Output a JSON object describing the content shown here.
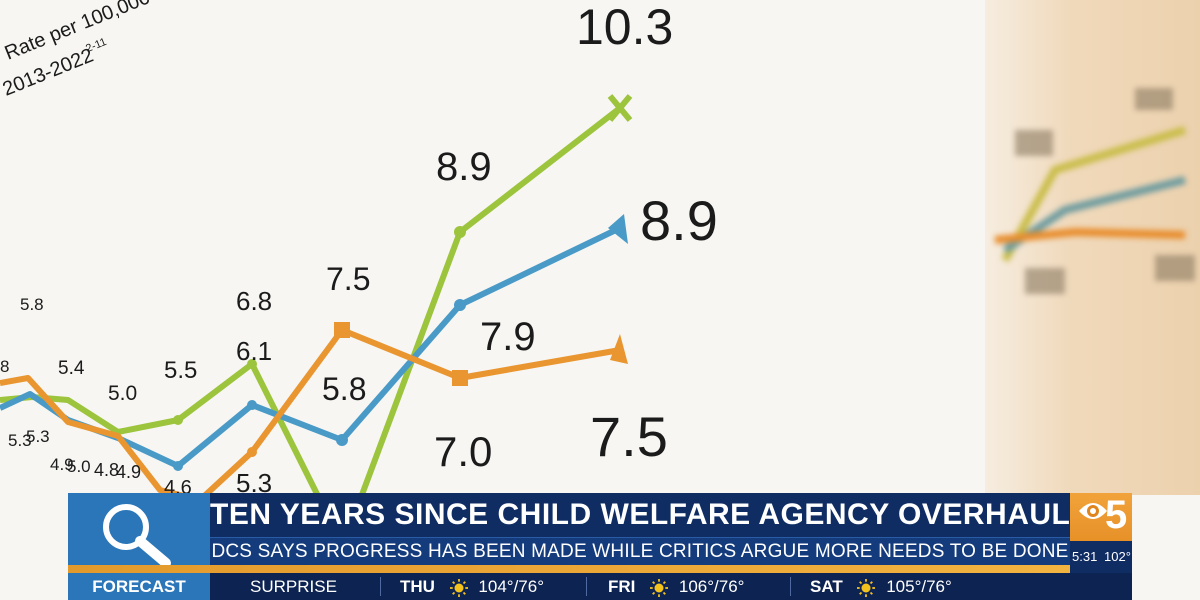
{
  "chart_data": {
    "type": "line",
    "ylabel": "Rate per 100,000",
    "subtitle_note": "2013-2022",
    "subtitle_superscript": "2-11",
    "series": [
      {
        "color": "#9cc43c",
        "values": [
          null,
          null,
          5.4,
          null,
          5.5,
          6.8,
          null,
          null,
          8.9,
          10.3
        ]
      },
      {
        "color": "#4a9ac7",
        "values": [
          null,
          5.3,
          4.9,
          4.8,
          null,
          6.1,
          5.8,
          null,
          7.9,
          8.9
        ]
      },
      {
        "color": "#e99530",
        "values": [
          null,
          5.8,
          5.0,
          4.9,
          null,
          5.3,
          7.5,
          null,
          7.0,
          7.5
        ]
      }
    ],
    "labels": {
      "top_left_8": "8",
      "l_5_8": "5.8",
      "l_5_3a": "5.3",
      "l_5_3b": "5.3",
      "l_5_4": "5.4",
      "l_4_9": "4.9",
      "l_5_0a": "5.0",
      "l_5_0b": "5.0",
      "l_4_8": "4.8",
      "l_4_9b": "4.9",
      "l_4_6": "4.6",
      "l_5_5": "5.5",
      "l_6_8": "6.8",
      "l_6_1": "6.1",
      "l_5_3c": "5.3",
      "l_7_5a": "7.5",
      "l_5_8b": "5.8",
      "l_8_9a": "8.9",
      "l_7_9": "7.9",
      "l_7_0": "7.0",
      "l_10_3": "10.3",
      "l_8_9b": "8.9",
      "l_7_5b": "7.5"
    }
  },
  "lower_third": {
    "headline": "TEN YEARS SINCE CHILD WELFARE AGENCY OVERHAUL",
    "subheadline": "DCS SAYS PROGRESS HAS BEEN MADE WHILE CRITICS ARGUE MORE NEEDS TO BE DONE",
    "logo_number": "5",
    "time": "5:31",
    "temperature": "102°",
    "search_icon": "magnifier-icon"
  },
  "ticker": {
    "label": "FORECAST",
    "items": [
      {
        "day": "SURPRISE",
        "temps": ""
      },
      {
        "day": "THU",
        "temps": "104°/76°"
      },
      {
        "day": "FRI",
        "temps": "106°/76°"
      },
      {
        "day": "SAT",
        "temps": "105°/76°"
      }
    ]
  },
  "colors": {
    "navy": "#0f2c63",
    "blue": "#2a76b8",
    "orange": "#e99530",
    "green": "#9cc43c",
    "line_blue": "#4a9ac7"
  }
}
